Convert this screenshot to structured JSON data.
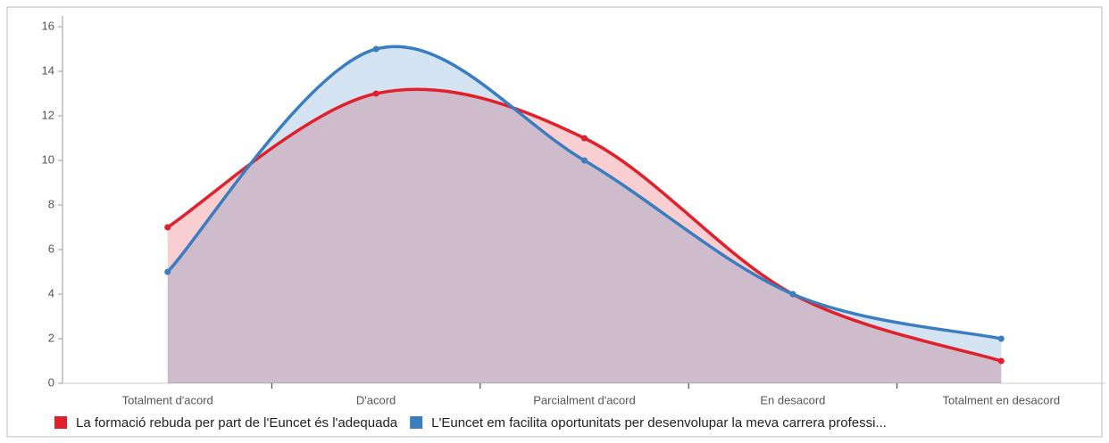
{
  "chart_data": {
    "type": "area",
    "categories": [
      "Totalment d'acord",
      "D'acord",
      "Parcialment d'acord",
      "En desacord",
      "Totalment en desacord"
    ],
    "series": [
      {
        "name": "La formació rebuda per part de l'Euncet és l'adequada",
        "color": "#e0202a",
        "values": [
          7,
          13,
          11,
          4,
          1
        ]
      },
      {
        "name": "L'Euncet em facilita oportunitats per desenvolupar la meva carrera professi...",
        "color": "#3a7ebf",
        "values": [
          5,
          15,
          10,
          4,
          2
        ]
      }
    ],
    "ylim": [
      0,
      16
    ],
    "yticks": [
      0,
      2,
      4,
      6,
      8,
      10,
      12,
      14,
      16
    ],
    "smooth": true
  }
}
